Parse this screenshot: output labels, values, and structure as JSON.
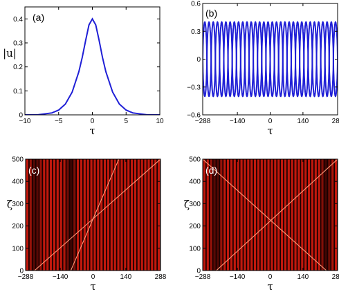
{
  "chart_data": [
    {
      "panel": "(a)",
      "type": "line",
      "xlabel": "τ",
      "ylabel": "|u|",
      "xlim": [
        -10,
        10
      ],
      "ylim": [
        0,
        0.45
      ],
      "xticks": [
        -10,
        -5,
        0,
        5,
        10
      ],
      "xtick_labels": [
        "−10",
        "−5",
        "0",
        "5",
        "10"
      ],
      "yticks": [
        0,
        0.1,
        0.2,
        0.3,
        0.4
      ],
      "ytick_labels": [
        "0",
        "0.1",
        "0.2",
        "0.3",
        "0.4"
      ],
      "series": [
        {
          "color": "#1f1fd6",
          "points": [
            [
              -10,
              0.0
            ],
            [
              -8,
              0.001
            ],
            [
              -6,
              0.008
            ],
            [
              -5,
              0.02
            ],
            [
              -4,
              0.045
            ],
            [
              -3,
              0.095
            ],
            [
              -2,
              0.18
            ],
            [
              -1.5,
              0.24
            ],
            [
              -1,
              0.31
            ],
            [
              -0.5,
              0.375
            ],
            [
              0,
              0.4
            ],
            [
              0.5,
              0.375
            ],
            [
              1,
              0.31
            ],
            [
              1.5,
              0.24
            ],
            [
              2,
              0.18
            ],
            [
              3,
              0.095
            ],
            [
              4,
              0.045
            ],
            [
              5,
              0.02
            ],
            [
              6,
              0.008
            ],
            [
              8,
              0.001
            ],
            [
              10,
              0.0
            ]
          ]
        }
      ]
    },
    {
      "panel": "(b)",
      "type": "line",
      "xlabel": "τ",
      "ylabel": "",
      "xlim": [
        -288,
        288
      ],
      "ylim": [
        -0.6,
        0.6
      ],
      "xticks": [
        -288,
        -140,
        0,
        140,
        288
      ],
      "xtick_labels": [
        "−288",
        "−140",
        "0",
        "140",
        "288"
      ],
      "yticks": [
        -0.6,
        -0.3,
        0,
        0.3,
        0.6
      ],
      "ytick_labels": [
        "−0.6",
        "−0.3",
        "0",
        "0.3",
        "0.6"
      ],
      "series": [
        {
          "color": "#1f1fd6",
          "amplitude": 0.4,
          "periods": 16,
          "phase": 0
        },
        {
          "color": "#1f1fd6",
          "amplitude": 0.4,
          "periods": 16,
          "phase": 0.5
        }
      ]
    },
    {
      "panel": "(c)",
      "type": "heatmap",
      "xlabel": "τ",
      "ylabel": "ζ",
      "xlim": [
        -288,
        288
      ],
      "ylim": [
        0,
        500
      ],
      "xticks": [
        -288,
        -140,
        0,
        140,
        288
      ],
      "xtick_labels": [
        "−288",
        "−140",
        "0",
        "140",
        "288"
      ],
      "yticks": [
        0,
        100,
        200,
        300,
        400,
        500
      ],
      "ytick_labels": [
        "0",
        "100",
        "200",
        "300",
        "400",
        "500"
      ],
      "stripe_count": 40,
      "colors": {
        "background": "#1a0000",
        "stripe": "#d41b0e"
      },
      "dark_bands": [
        -245,
        -95
      ],
      "trajectories": [
        [
          [
            -250,
            0
          ],
          [
            288,
            500
          ]
        ],
        [
          [
            -95,
            0
          ],
          [
            110,
            500
          ]
        ]
      ]
    },
    {
      "panel": "(d)",
      "type": "heatmap",
      "xlabel": "τ",
      "ylabel": "ζ",
      "xlim": [
        -288,
        288
      ],
      "ylim": [
        0,
        500
      ],
      "xticks": [
        -288,
        -140,
        0,
        140,
        288
      ],
      "xtick_labels": [
        "−288",
        "−140",
        "0",
        "140",
        "288"
      ],
      "yticks": [
        0,
        100,
        200,
        300,
        400,
        500
      ],
      "ytick_labels": [
        "0",
        "100",
        "200",
        "300",
        "400",
        "500"
      ],
      "stripe_count": 40,
      "colors": {
        "background": "#1a0000",
        "stripe": "#d41b0e"
      },
      "dark_bands": [
        -230,
        240
      ],
      "trajectories": [
        [
          [
            -230,
            0
          ],
          [
            288,
            500
          ]
        ],
        [
          [
            240,
            0
          ],
          [
            -288,
            500
          ]
        ]
      ]
    }
  ]
}
